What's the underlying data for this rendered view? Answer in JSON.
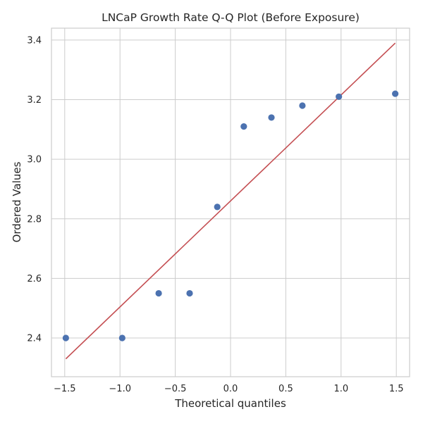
{
  "chart_data": {
    "type": "scatter",
    "title": "LNCaP Growth Rate Q-Q Plot (Before Exposure)",
    "xlabel": "Theoretical quantiles",
    "ylabel": "Ordered Values",
    "xlim": [
      -1.62,
      1.62
    ],
    "ylim": [
      2.27,
      3.44
    ],
    "xticks": [
      -1.5,
      -1.0,
      -0.5,
      0.0,
      0.5,
      1.0,
      1.5
    ],
    "xtick_labels": [
      "−1.5",
      "−1.0",
      "−0.5",
      "0.0",
      "0.5",
      "1.0",
      "1.5"
    ],
    "yticks": [
      2.4,
      2.6,
      2.8,
      3.0,
      3.2,
      3.4
    ],
    "ytick_labels": [
      "2.4",
      "2.6",
      "2.8",
      "3.0",
      "3.2",
      "3.4"
    ],
    "grid": true,
    "series": [
      {
        "type": "scatter",
        "color": "#4c72b0",
        "x": [
          -1.49,
          -0.98,
          -0.65,
          -0.37,
          -0.12,
          0.12,
          0.37,
          0.65,
          0.98,
          1.49
        ],
        "y": [
          2.4,
          2.4,
          2.55,
          2.55,
          2.84,
          3.11,
          3.14,
          3.18,
          3.21,
          3.22
        ]
      },
      {
        "type": "line",
        "color": "#c44e52",
        "x": [
          -1.49,
          1.49
        ],
        "y": [
          2.33,
          3.39
        ]
      }
    ]
  }
}
